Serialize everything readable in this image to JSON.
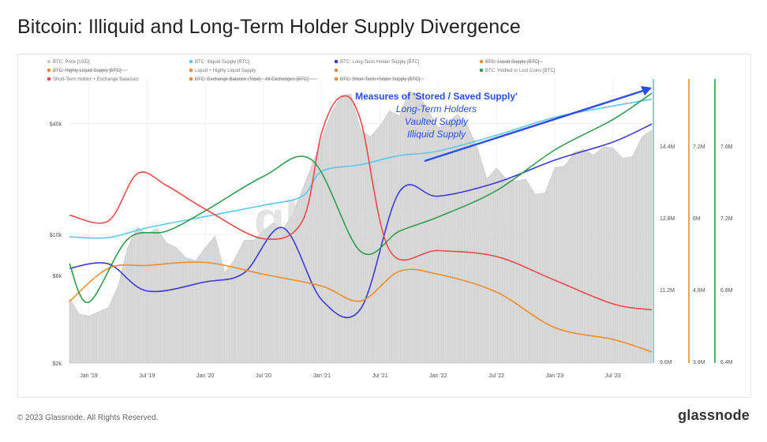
{
  "title": "Bitcoin: Illiquid and Long-Term Holder Supply Divergence",
  "footer": {
    "copyright": "© 2023 Glassnode. All Rights Reserved.",
    "brand": "glassnode"
  },
  "watermark": "glassnode",
  "annotation": {
    "heading": "Measures of 'Stored / Saved Supply'",
    "lines": [
      "Long-Term Holders",
      "Vaulted Supply",
      "Illiquid Supply"
    ]
  },
  "legend": [
    {
      "label": "BTC: Price [USD]",
      "color": "#cccccc",
      "struck": false
    },
    {
      "label": "BTC: Illiquid Supply [BTC]",
      "color": "#5bc8ec",
      "struck": false
    },
    {
      "label": "BTC: Long-Term Holder Supply [BTC]",
      "color": "#3b3bd6",
      "struck": false
    },
    {
      "label": "BTC: Liquid Supply [BTC]",
      "color": "#f28c28",
      "struck": true
    },
    {
      "label": "BTC: Highly Liquid Supply [BTC]",
      "color": "#f28c28",
      "struck": true
    },
    {
      "label": "Liquid + Highly Liquid Supply",
      "color": "#f28c28",
      "struck": false
    },
    {
      "label": "-",
      "color": "#f28c28",
      "struck": false
    },
    {
      "label": "BTC: Hodled or Lost Coins [BTC]",
      "color": "#2e9e4f",
      "struck": false
    },
    {
      "label": "Short-Term Holder + Exchange Balances",
      "color": "#ee4a4a",
      "struck": false
    },
    {
      "label": "BTC: Exchange Balance (Total) - All Exchanges [BTC]",
      "color": "#f28c28",
      "struck": true
    },
    {
      "label": "BTC: Short-Term Holder Supply [BTC]",
      "color": "#f28c28",
      "struck": true
    }
  ],
  "chart_data": {
    "type": "line",
    "x_ticks": [
      "Jan '19",
      "Jul '19",
      "Jan '20",
      "Jul '20",
      "Jan '21",
      "Jul '21",
      "Jan '22",
      "Jul '22",
      "Jan '23",
      "Jul '23"
    ],
    "x_range": [
      "2018-11",
      "2023-11"
    ],
    "y_price_ticks": [
      "$40k",
      "$10k",
      "$6k",
      "$2k"
    ],
    "y_price_scale": "log",
    "y_price_range": [
      2000,
      70000
    ],
    "y_supply1_ticks": [
      "14.4M",
      "12.8M",
      "11.2M",
      "9.6M"
    ],
    "y_supply1_range": [
      9600000,
      15900000
    ],
    "y_supply2_ticks": [
      "7.2M",
      "6M",
      "4.8M",
      "3.6M"
    ],
    "y_supply2_range": [
      3600000,
      8400000
    ],
    "y_supply3_ticks": [
      "7.6M",
      "7.2M",
      "6.8M",
      "6.4M"
    ],
    "y_supply3_range": [
      6400000,
      7800000
    ],
    "series": [
      {
        "name": "BTC: Price [USD]",
        "color": "#cccccc",
        "style": "area",
        "axis": "price",
        "x": [
          "2018-11",
          "2018-12",
          "2019-01",
          "2019-02",
          "2019-03",
          "2019-04",
          "2019-05",
          "2019-06",
          "2019-07",
          "2019-08",
          "2019-09",
          "2019-10",
          "2019-11",
          "2019-12",
          "2020-01",
          "2020-02",
          "2020-03",
          "2020-04",
          "2020-05",
          "2020-06",
          "2020-07",
          "2020-08",
          "2020-09",
          "2020-10",
          "2020-11",
          "2020-12",
          "2021-01",
          "2021-02",
          "2021-03",
          "2021-04",
          "2021-05",
          "2021-06",
          "2021-07",
          "2021-08",
          "2021-09",
          "2021-10",
          "2021-11",
          "2021-12",
          "2022-01",
          "2022-02",
          "2022-03",
          "2022-04",
          "2022-05",
          "2022-06",
          "2022-07",
          "2022-08",
          "2022-09",
          "2022-10",
          "2022-11",
          "2022-12",
          "2023-01",
          "2023-02",
          "2023-03",
          "2023-04",
          "2023-05",
          "2023-06",
          "2023-07",
          "2023-08",
          "2023-09",
          "2023-10",
          "2023-11"
        ],
        "y": [
          4500,
          3700,
          3600,
          3800,
          4000,
          5200,
          8500,
          11000,
          10000,
          10800,
          9000,
          8500,
          7500,
          7200,
          8500,
          9800,
          6200,
          7300,
          9300,
          9300,
          10500,
          11600,
          10600,
          13000,
          17500,
          24000,
          33000,
          46000,
          57000,
          58000,
          37000,
          34000,
          39000,
          47000,
          44000,
          60000,
          57000,
          47000,
          38000,
          41000,
          45000,
          39000,
          30000,
          20000,
          23000,
          20000,
          19500,
          20000,
          16500,
          16800,
          23000,
          23500,
          28000,
          29000,
          27000,
          30000,
          29500,
          26000,
          26500,
          34000,
          37000
        ]
      },
      {
        "name": "BTC: Illiquid Supply [BTC]",
        "color": "#5bc8ec",
        "axis": "supply1",
        "x": [
          "2018-11",
          "2019-03",
          "2019-07",
          "2020-01",
          "2020-07",
          "2020-11",
          "2021-01",
          "2021-05",
          "2021-09",
          "2022-01",
          "2022-07",
          "2023-01",
          "2023-07",
          "2023-11"
        ],
        "y": [
          12400000,
          12380000,
          12600000,
          12850000,
          13100000,
          13300000,
          13850000,
          14000000,
          14200000,
          14300000,
          14650000,
          15050000,
          15300000,
          15450000
        ]
      },
      {
        "name": "BTC: Long-Term Holder Supply [BTC]",
        "color": "#3b3bd6",
        "axis": "supply1",
        "x": [
          "2018-11",
          "2019-03",
          "2019-07",
          "2020-01",
          "2020-05",
          "2020-09",
          "2021-01",
          "2021-05",
          "2021-09",
          "2022-01",
          "2022-07",
          "2023-01",
          "2023-07",
          "2023-11"
        ],
        "y": [
          11700000,
          11800000,
          11200000,
          11400000,
          11600000,
          12600000,
          11000000,
          10800000,
          13400000,
          13300000,
          13600000,
          14100000,
          14500000,
          14900000
        ]
      },
      {
        "name": "Liquid + Highly Liquid Supply",
        "color": "#f28c28",
        "axis": "supply2",
        "x": [
          "2018-11",
          "2019-03",
          "2019-07",
          "2020-01",
          "2020-07",
          "2021-01",
          "2021-05",
          "2021-09",
          "2022-01",
          "2022-07",
          "2023-01",
          "2023-07",
          "2023-11"
        ],
        "y": [
          4640000,
          5200000,
          5250000,
          5300000,
          5100000,
          4900000,
          4650000,
          5150000,
          5100000,
          4800000,
          4200000,
          4000000,
          3790000
        ]
      },
      {
        "name": "BTC: Hodled or Lost Coins [BTC]",
        "color": "#2e9e4f",
        "axis": "supply3",
        "x": [
          "2018-11",
          "2019-01",
          "2019-05",
          "2019-09",
          "2020-01",
          "2020-07",
          "2020-12",
          "2021-05",
          "2021-09",
          "2022-01",
          "2022-07",
          "2023-01",
          "2023-07",
          "2023-11"
        ],
        "y": [
          6890000,
          6700000,
          7010000,
          7050000,
          7150000,
          7320000,
          7400000,
          6950000,
          7050000,
          7120000,
          7250000,
          7450000,
          7600000,
          7730000
        ]
      },
      {
        "name": "Short-Term Holder + Exchange Balances",
        "color": "#ee4a4a",
        "axis": "supply2",
        "x": [
          "2018-11",
          "2019-03",
          "2019-06",
          "2019-09",
          "2020-01",
          "2020-07",
          "2020-11",
          "2021-01",
          "2021-03",
          "2021-05",
          "2021-08",
          "2022-01",
          "2022-07",
          "2023-01",
          "2023-07",
          "2023-11"
        ],
        "y": [
          6100000,
          6000000,
          6800000,
          6600000,
          6200000,
          5700000,
          6000000,
          7500000,
          8100000,
          7700000,
          5500000,
          5500000,
          5400000,
          5000000,
          4600000,
          4500000
        ]
      }
    ],
    "grid": true,
    "legend_placement": "top-left"
  }
}
